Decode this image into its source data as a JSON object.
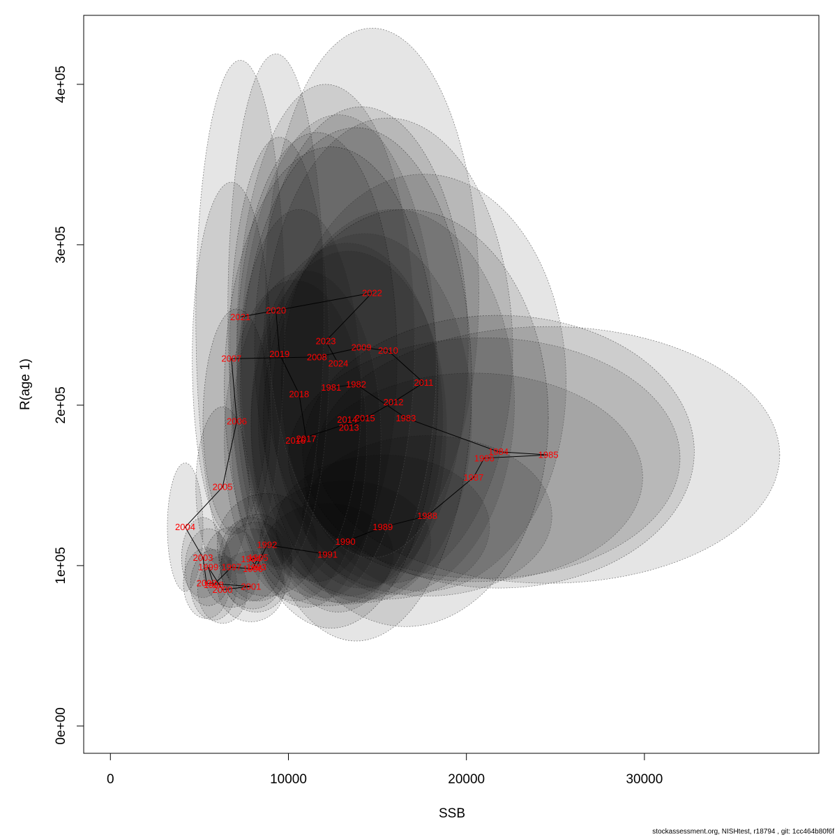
{
  "chart_data": {
    "type": "scatter",
    "xlabel": "SSB",
    "ylabel": "R(age 1)",
    "xlim": [
      -1500,
      39800
    ],
    "ylim": [
      -17000,
      443000
    ],
    "x_ticks": [
      0,
      10000,
      20000,
      30000
    ],
    "x_tick_labels": [
      "0",
      "10000",
      "20000",
      "30000"
    ],
    "y_ticks": [
      0,
      100000,
      200000,
      300000,
      400000
    ],
    "y_tick_labels": [
      "0e+00",
      "1e+05",
      "2e+05",
      "3e+05",
      "4e+05"
    ],
    "grid": false,
    "legend": "none",
    "connect_in_year_order": true,
    "colors": {
      "points_label": "#ff0000",
      "ellipse_fill": "#000000",
      "ellipse_stroke": "#555555",
      "line": "#000000"
    },
    "points": [
      {
        "year": "1981",
        "ssb": 12400,
        "r": 211000,
        "rx": 6000,
        "ry": 150000
      },
      {
        "year": "1982",
        "ssb": 13800,
        "r": 213000,
        "rx": 6500,
        "ry": 160000
      },
      {
        "year": "1983",
        "ssb": 16600,
        "r": 192000,
        "rx": 8000,
        "ry": 130000
      },
      {
        "year": "1984",
        "ssb": 21800,
        "r": 171000,
        "rx": 11000,
        "ry": 85000
      },
      {
        "year": "1985",
        "ssb": 24600,
        "r": 169000,
        "rx": 13000,
        "ry": 80000
      },
      {
        "year": "1986",
        "ssb": 21000,
        "r": 167000,
        "rx": 11000,
        "ry": 75000
      },
      {
        "year": "1987",
        "ssb": 20400,
        "r": 155000,
        "rx": 9500,
        "ry": 65000
      },
      {
        "year": "1988",
        "ssb": 17800,
        "r": 131000,
        "rx": 7000,
        "ry": 50000
      },
      {
        "year": "1989",
        "ssb": 15300,
        "r": 124000,
        "rx": 6000,
        "ry": 45000
      },
      {
        "year": "1990",
        "ssb": 13200,
        "r": 115000,
        "rx": 4800,
        "ry": 38000
      },
      {
        "year": "1991",
        "ssb": 12200,
        "r": 107000,
        "rx": 3700,
        "ry": 32000
      },
      {
        "year": "1992",
        "ssb": 8800,
        "r": 113000,
        "rx": 2800,
        "ry": 32000
      },
      {
        "year": "1993",
        "ssb": 8200,
        "r": 99000,
        "rx": 2000,
        "ry": 28000
      },
      {
        "year": "1994",
        "ssb": 7900,
        "r": 104000,
        "rx": 1800,
        "ry": 26000
      },
      {
        "year": "1995",
        "ssb": 8300,
        "r": 105000,
        "rx": 1900,
        "ry": 27000
      },
      {
        "year": "1996",
        "ssb": 8000,
        "r": 98000,
        "rx": 1800,
        "ry": 25000
      },
      {
        "year": "1997",
        "ssb": 6800,
        "r": 99000,
        "rx": 1600,
        "ry": 25000
      },
      {
        "year": "1998",
        "ssb": 5800,
        "r": 88000,
        "rx": 1300,
        "ry": 22000
      },
      {
        "year": "1999",
        "ssb": 5500,
        "r": 99000,
        "rx": 1300,
        "ry": 24000
      },
      {
        "year": "2000",
        "ssb": 6300,
        "r": 85000,
        "rx": 1400,
        "ry": 21000
      },
      {
        "year": "2001",
        "ssb": 7900,
        "r": 87000,
        "rx": 1900,
        "ry": 22000
      },
      {
        "year": "2002",
        "ssb": 5400,
        "r": 89000,
        "rx": 1300,
        "ry": 22000
      },
      {
        "year": "2003",
        "ssb": 5200,
        "r": 105000,
        "rx": 1200,
        "ry": 25000
      },
      {
        "year": "2004",
        "ssb": 4200,
        "r": 124000,
        "rx": 1000,
        "ry": 40000
      },
      {
        "year": "2005",
        "ssb": 6300,
        "r": 149000,
        "rx": 1500,
        "ry": 50000
      },
      {
        "year": "2006",
        "ssb": 7100,
        "r": 190000,
        "rx": 1900,
        "ry": 70000
      },
      {
        "year": "2007",
        "ssb": 6800,
        "r": 229000,
        "rx": 2200,
        "ry": 110000
      },
      {
        "year": "2008",
        "ssb": 11600,
        "r": 230000,
        "rx": 4500,
        "ry": 140000
      },
      {
        "year": "2009",
        "ssb": 14100,
        "r": 236000,
        "rx": 6000,
        "ry": 150000
      },
      {
        "year": "2010",
        "ssb": 15600,
        "r": 234000,
        "rx": 7000,
        "ry": 145000
      },
      {
        "year": "2011",
        "ssb": 17600,
        "r": 214000,
        "rx": 8000,
        "ry": 130000
      },
      {
        "year": "2012",
        "ssb": 15900,
        "r": 202000,
        "rx": 6800,
        "ry": 120000
      },
      {
        "year": "2013",
        "ssb": 13400,
        "r": 186000,
        "rx": 5500,
        "ry": 110000
      },
      {
        "year": "2014",
        "ssb": 13300,
        "r": 191000,
        "rx": 5400,
        "ry": 110000
      },
      {
        "year": "2015",
        "ssb": 14300,
        "r": 192000,
        "rx": 6000,
        "ry": 115000
      },
      {
        "year": "2016",
        "ssb": 10400,
        "r": 178000,
        "rx": 4000,
        "ry": 100000
      },
      {
        "year": "2017",
        "ssb": 11000,
        "r": 179000,
        "rx": 4200,
        "ry": 105000
      },
      {
        "year": "2018",
        "ssb": 10600,
        "r": 207000,
        "rx": 3500,
        "ry": 115000
      },
      {
        "year": "2019",
        "ssb": 9500,
        "r": 232000,
        "rx": 2800,
        "ry": 135000
      },
      {
        "year": "2020",
        "ssb": 9300,
        "r": 259000,
        "rx": 2700,
        "ry": 160000
      },
      {
        "year": "2021",
        "ssb": 7300,
        "r": 255000,
        "rx": 2500,
        "ry": 160000
      },
      {
        "year": "2022",
        "ssb": 14700,
        "r": 270000,
        "rx": 6000,
        "ry": 165000
      },
      {
        "year": "2023",
        "ssb": 12100,
        "r": 240000,
        "rx": 5000,
        "ry": 160000
      },
      {
        "year": "2024",
        "ssb": 12800,
        "r": 226000,
        "rx": 5500,
        "ry": 155000
      }
    ]
  },
  "footer_text": "stockassessment.org, NISHtest, r18794 , git: 1cc464b80f6f"
}
